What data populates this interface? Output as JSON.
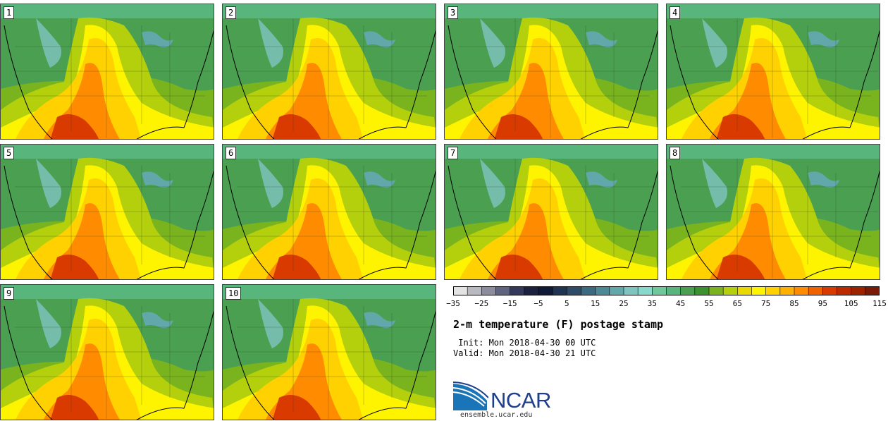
{
  "panels": [
    {
      "label": "1"
    },
    {
      "label": "2"
    },
    {
      "label": "3"
    },
    {
      "label": "4"
    },
    {
      "label": "5"
    },
    {
      "label": "6"
    },
    {
      "label": "7"
    },
    {
      "label": "8"
    },
    {
      "label": "9"
    },
    {
      "label": "10"
    }
  ],
  "colorbar": {
    "colors": [
      "#e3e3e3",
      "#b9b9c2",
      "#8b8c9e",
      "#5f6581",
      "#33395a",
      "#1c2140",
      "#101a36",
      "#1f3353",
      "#2d4c68",
      "#3a6a80",
      "#4c8895",
      "#62a8aa",
      "#80c4c0",
      "#88d8cc",
      "#6fc79c",
      "#58b67d",
      "#4aa050",
      "#3c9131",
      "#79b41f",
      "#b4d00d",
      "#ead900",
      "#fff400",
      "#ffd100",
      "#ffb000",
      "#ff8c00",
      "#f26100",
      "#d83a00",
      "#bc2a00",
      "#9c2200",
      "#7a1a08"
    ],
    "tick_labels": [
      "−35",
      "−25",
      "−15",
      "−5",
      "5",
      "15",
      "25",
      "35",
      "45",
      "55",
      "65",
      "75",
      "85",
      "95",
      "105",
      "115"
    ]
  },
  "title": "2-m temperature (F) postage stamp",
  "init": " Init: Mon 2018-04-30 00 UTC",
  "valid": "Valid: Mon 2018-04-30 21 UTC",
  "logo_text": "NCAR",
  "url": "ensemble.ucar.edu"
}
